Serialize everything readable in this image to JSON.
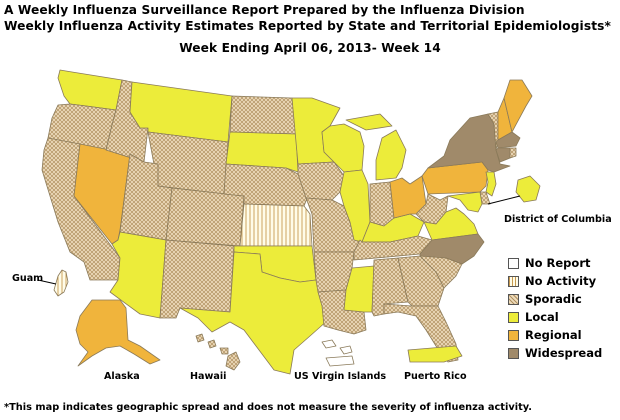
{
  "title": {
    "line1": "A Weekly Influenza Surveillance Report Prepared by the Influenza Division",
    "line2": "Weekly Influenza Activity Estimates Reported by State and Territorial Epidemiologists*",
    "week": "Week Ending April 06, 2013- Week 14"
  },
  "colors": {
    "no_report": "#ffffff",
    "no_activity": "#fffce8",
    "sporadic": "#e8d6b4",
    "local": "#ecec3a",
    "regional": "#f0b43c",
    "widespread": "#a08a6a",
    "border": "#8a7a5a"
  },
  "legend": [
    {
      "key": "no_report",
      "label": "No Report"
    },
    {
      "key": "no_activity",
      "label": "No Activity"
    },
    {
      "key": "sporadic",
      "label": "Sporadic"
    },
    {
      "key": "local",
      "label": "Local"
    },
    {
      "key": "regional",
      "label": "Regional"
    },
    {
      "key": "widespread",
      "label": "Widespread"
    }
  ],
  "labels": {
    "guam": "Guam",
    "alaska": "Alaska",
    "hawaii": "Hawaii",
    "usvi": "US Virgin Islands",
    "puerto_rico": "Puerto Rico",
    "dc": "District of Columbia"
  },
  "activity": {
    "WA": "local",
    "OR": "sporadic",
    "CA": "sporadic",
    "NV": "regional",
    "ID": "sporadic",
    "MT": "local",
    "WY": "sporadic",
    "UT": "sporadic",
    "AZ": "local",
    "CO": "sporadic",
    "NM": "sporadic",
    "ND": "sporadic",
    "SD": "local",
    "NE": "sporadic",
    "KS": "no_activity",
    "OK": "local",
    "TX": "local",
    "MN": "local",
    "IA": "sporadic",
    "MO": "sporadic",
    "AR": "sporadic",
    "LA": "sporadic",
    "WI": "local",
    "IL": "local",
    "MS": "local",
    "MI": "local",
    "IN": "sporadic",
    "KY": "local",
    "TN": "sporadic",
    "AL": "sporadic",
    "GA": "sporadic",
    "FL": "sporadic",
    "OH": "regional",
    "WV": "sporadic",
    "VA": "local",
    "NC": "widespread",
    "SC": "sporadic",
    "PA": "regional",
    "NY": "widespread",
    "VT": "sporadic",
    "NH": "regional",
    "ME": "regional",
    "MA": "widespread",
    "CT": "widespread",
    "RI": "sporadic",
    "NJ": "local",
    "DE": "sporadic",
    "MD": "local",
    "DC": "local",
    "AK": "regional",
    "HI": "sporadic",
    "GU": "no_activity",
    "PR": "local",
    "VI": "no_report"
  },
  "footnote": "*This map indicates geographic spread and does not measure the severity of influenza activity."
}
